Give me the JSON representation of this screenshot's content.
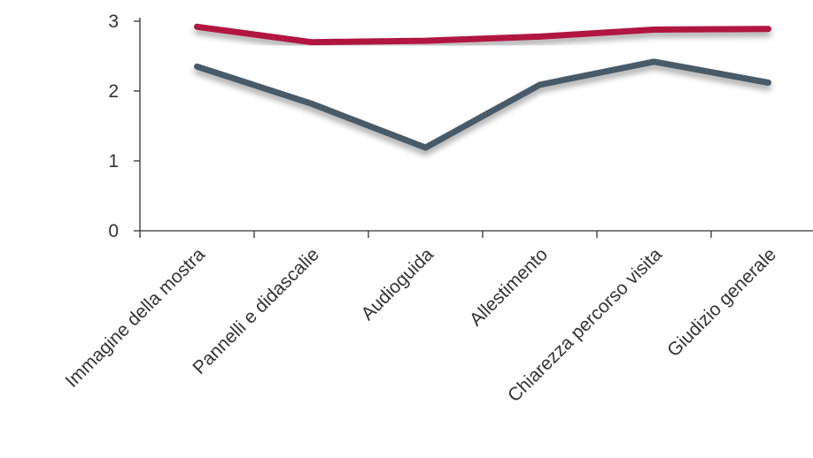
{
  "chart_data": {
    "type": "line",
    "categories": [
      "Immagine della mostra",
      "Pannelli e didascalie",
      "Audioguida",
      "Allestimento",
      "Chiarezza percorso visita",
      "Giudizio generale"
    ],
    "series": [
      {
        "values": [
          2.92,
          2.7,
          2.72,
          2.78,
          2.88,
          2.89
        ],
        "color": "#B0123F"
      },
      {
        "values": [
          2.35,
          1.82,
          1.19,
          2.09,
          2.42,
          2.12
        ],
        "color": "#4A5A68"
      }
    ],
    "ylim": [
      0,
      3
    ],
    "yticks": [
      "0",
      "1",
      "2",
      "3"
    ],
    "grid": false,
    "legend": "none"
  }
}
